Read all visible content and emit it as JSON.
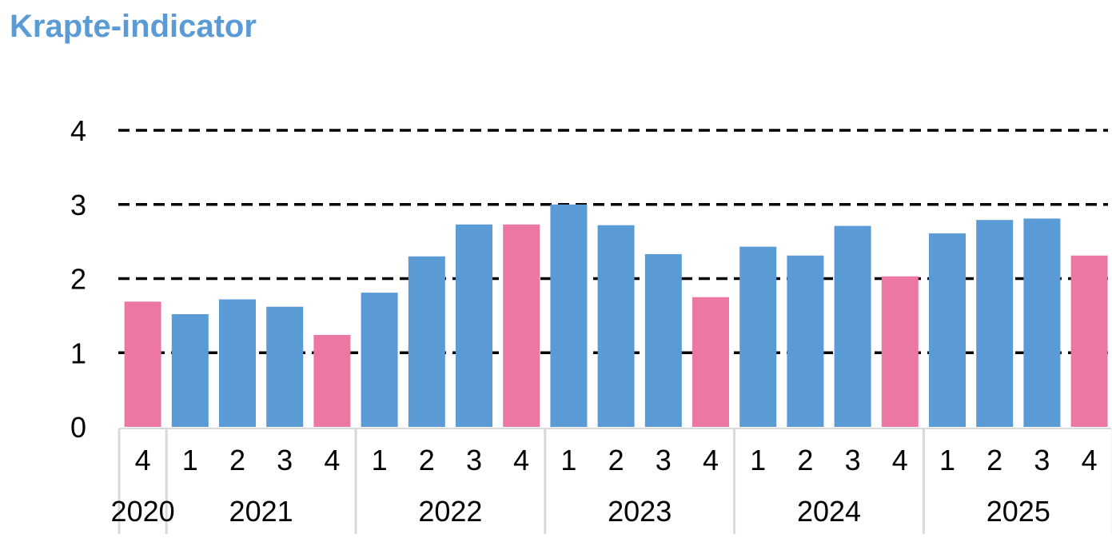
{
  "title": "Krapte-indicator",
  "colors": {
    "title": "#5b9bd5",
    "regular_bar": "#5b9bd5",
    "q4_bar": "#ec77a3",
    "gridline": "#000000",
    "axis_separator": "#d9d9d9"
  },
  "chart_data": {
    "type": "bar",
    "title": "Krapte-indicator",
    "xlabel": "",
    "ylabel": "",
    "ylim": [
      0,
      4
    ],
    "y_ticks": [
      "0",
      "1",
      "2",
      "3",
      "4"
    ],
    "grid": "dashed horizontal lines at 1, 2, 3, 4",
    "legend": "none",
    "categories": [
      "2020 Q4",
      "2021 Q1",
      "2021 Q2",
      "2021 Q3",
      "2021 Q4",
      "2022 Q1",
      "2022 Q2",
      "2022 Q3",
      "2022 Q4",
      "2023 Q1",
      "2023 Q2",
      "2023 Q3",
      "2023 Q4",
      "2024 Q1",
      "2024 Q2",
      "2024 Q3",
      "2024 Q4",
      "2025 Q1",
      "2025 Q2",
      "2025 Q3",
      "2025 Q4"
    ],
    "quarter_labels": [
      "4",
      "1",
      "2",
      "3",
      "4",
      "1",
      "2",
      "3",
      "4",
      "1",
      "2",
      "3",
      "4",
      "1",
      "2",
      "3",
      "4",
      "1",
      "2",
      "3",
      "4"
    ],
    "year_groups": [
      {
        "label": "2020",
        "count": 1
      },
      {
        "label": "2021",
        "count": 4
      },
      {
        "label": "2022",
        "count": 4
      },
      {
        "label": "2023",
        "count": 4
      },
      {
        "label": "2024",
        "count": 4
      },
      {
        "label": "2025",
        "count": 4
      }
    ],
    "values": [
      1.69,
      1.52,
      1.72,
      1.62,
      1.24,
      1.81,
      2.3,
      2.73,
      2.73,
      3.0,
      2.72,
      2.33,
      1.75,
      2.43,
      2.31,
      2.71,
      2.03,
      2.61,
      2.79,
      2.81,
      2.31
    ],
    "q4_highlighted": true
  }
}
